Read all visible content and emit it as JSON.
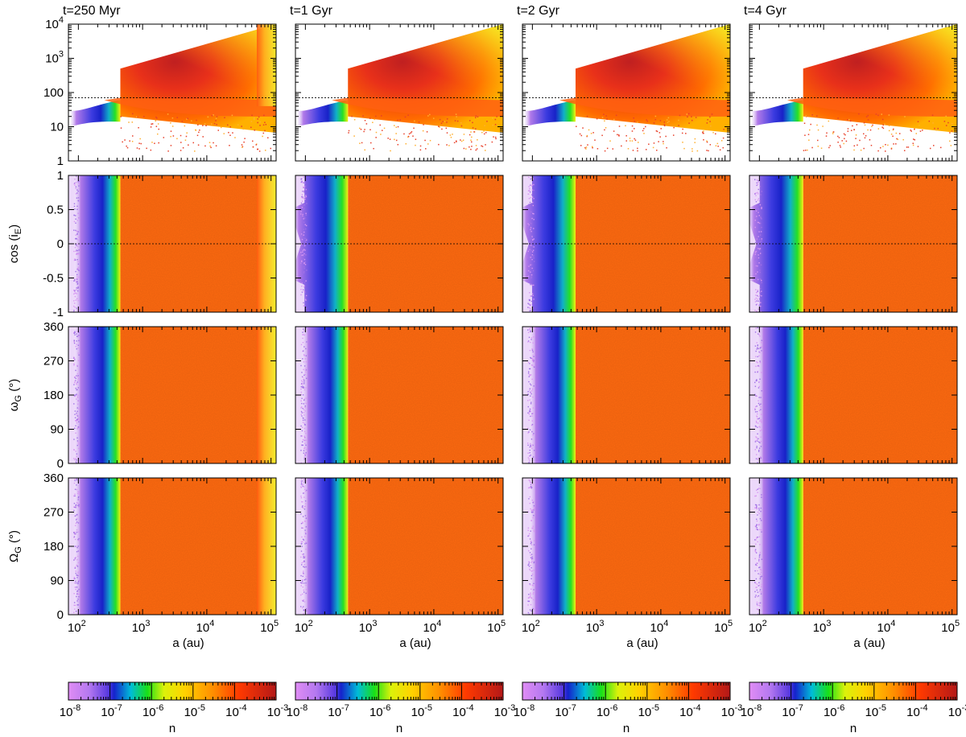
{
  "chart_data": {
    "type": "heatmap",
    "description_series": "Number density n of orbits as function of semi-major axis a and orbital elements at four epochs",
    "times": [
      "t=250 Myr",
      "t=1 Gyr",
      "t=2 Gyr",
      "t=4 Gyr"
    ],
    "xaxis": {
      "label": "a (au)",
      "scale": "log",
      "range": [
        70,
        120000
      ],
      "ticks": [
        {
          "base": "10",
          "exp": "2"
        },
        {
          "base": "10",
          "exp": "3"
        },
        {
          "base": "10",
          "exp": "4"
        },
        {
          "base": "10",
          "exp": "5"
        }
      ]
    },
    "rows": [
      {
        "key": "q",
        "ylabel": "",
        "scale": "log",
        "range": [
          1,
          10000
        ],
        "ticks": [
          {
            "text": "1",
            "value": 1
          },
          {
            "text": "10",
            "value": 10
          },
          {
            "text": "100",
            "value": 100
          },
          {
            "base": "10",
            "exp": "3",
            "value": 1000
          },
          {
            "base": "10",
            "exp": "4",
            "value": 10000
          }
        ],
        "reference_line": 70
      },
      {
        "key": "cosi",
        "ylabel_main": "cos (i",
        "ylabel_sub": "E",
        "ylabel_tail": ")",
        "scale": "linear",
        "range": [
          -1,
          1
        ],
        "ticks": [
          {
            "text": "1",
            "value": 1
          },
          {
            "text": "0.5",
            "value": 0.5
          },
          {
            "text": "0",
            "value": 0
          },
          {
            "text": "-0.5",
            "value": -0.5
          },
          {
            "text": "-1",
            "value": -1
          }
        ],
        "reference_line": 0
      },
      {
        "key": "omega",
        "ylabel_main": "ω",
        "ylabel_sub": "G",
        "ylabel_tail": " (°)",
        "scale": "linear",
        "range": [
          0,
          360
        ],
        "ticks": [
          {
            "text": "360",
            "value": 360
          },
          {
            "text": "270",
            "value": 270
          },
          {
            "text": "180",
            "value": 180
          },
          {
            "text": "90",
            "value": 90
          },
          {
            "text": "0",
            "value": 0
          }
        ]
      },
      {
        "key": "Omega",
        "ylabel_main": "Ω",
        "ylabel_sub": "G",
        "ylabel_tail": " (°)",
        "scale": "linear",
        "range": [
          0,
          360
        ],
        "ticks": [
          {
            "text": "360",
            "value": 360
          },
          {
            "text": "270",
            "value": 270
          },
          {
            "text": "180",
            "value": 180
          },
          {
            "text": "90",
            "value": 90
          },
          {
            "text": "0",
            "value": 0
          }
        ]
      }
    ],
    "colorbar": {
      "label": "n",
      "scale": "log",
      "range": [
        "1e-8",
        "1e-3"
      ],
      "ticks": [
        {
          "base": "10",
          "exp": "-8"
        },
        {
          "base": "10",
          "exp": "-7"
        },
        {
          "base": "10",
          "exp": "-6"
        },
        {
          "base": "10",
          "exp": "-5"
        },
        {
          "base": "10",
          "exp": "-4"
        },
        {
          "base": "10",
          "exp": "-3"
        }
      ],
      "palette": [
        "#d98cf2",
        "#8844ee",
        "#1522cc",
        "#00b8e0",
        "#15e015",
        "#f2f20a",
        "#ffc400",
        "#ff7b00",
        "#ff2800",
        "#c01818"
      ]
    },
    "features": {
      "inner_edge_au": [
        450,
        460,
        470,
        480
      ],
      "outer_flat_region_value": "~1e-4.7",
      "q_ceiling_start_au": 460
    }
  }
}
